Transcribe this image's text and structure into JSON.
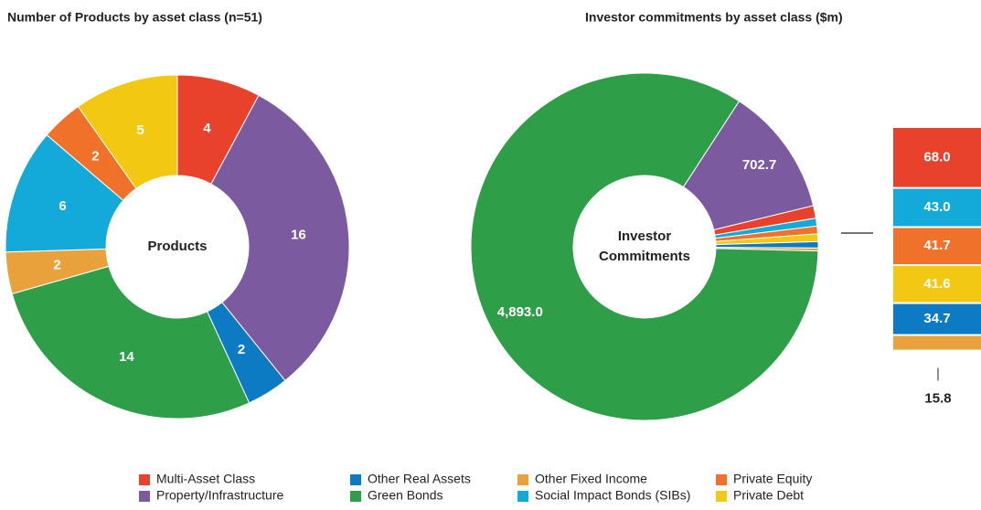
{
  "chart_data": [
    {
      "type": "donut",
      "title": "Number of Products by asset class (n=51)",
      "center_label": [
        "Products"
      ],
      "categories": [
        "Multi-Asset Class",
        "Property/Infrastructure",
        "Other Real Assets",
        "Green Bonds",
        "Other Fixed Income",
        "Social Impact Bonds (SIBs)",
        "Private Equity",
        "Private Debt"
      ],
      "colors": [
        "#e8412c",
        "#7b5aa0",
        "#0c7bc4",
        "#2e9e48",
        "#e9a23b",
        "#13a9d8",
        "#f0722a",
        "#f3c812"
      ],
      "values": [
        4,
        16,
        2,
        14,
        2,
        6,
        2,
        5
      ]
    },
    {
      "type": "donut",
      "title": "Investor commitments by asset class ($m)",
      "center_label": [
        "Investor",
        "Commitments"
      ],
      "categories": [
        "Property/Infrastructure",
        "Multi-Asset Class",
        "Social Impact Bonds (SIBs)",
        "Private Equity",
        "Private Debt",
        "Other Real Assets",
        "Other Fixed Income",
        "Green Bonds"
      ],
      "colors": [
        "#7b5aa0",
        "#e8412c",
        "#13a9d8",
        "#f0722a",
        "#f3c812",
        "#0c7bc4",
        "#e9a23b",
        "#2e9e48"
      ],
      "values": [
        702.7,
        68.0,
        43.0,
        41.7,
        41.6,
        34.7,
        15.8,
        4893.0
      ],
      "value_labels": [
        "702.7",
        "68.0",
        "43.0",
        "41.7",
        "41.6",
        "34.7",
        "15.8",
        "4,893.0"
      ]
    }
  ]
}
